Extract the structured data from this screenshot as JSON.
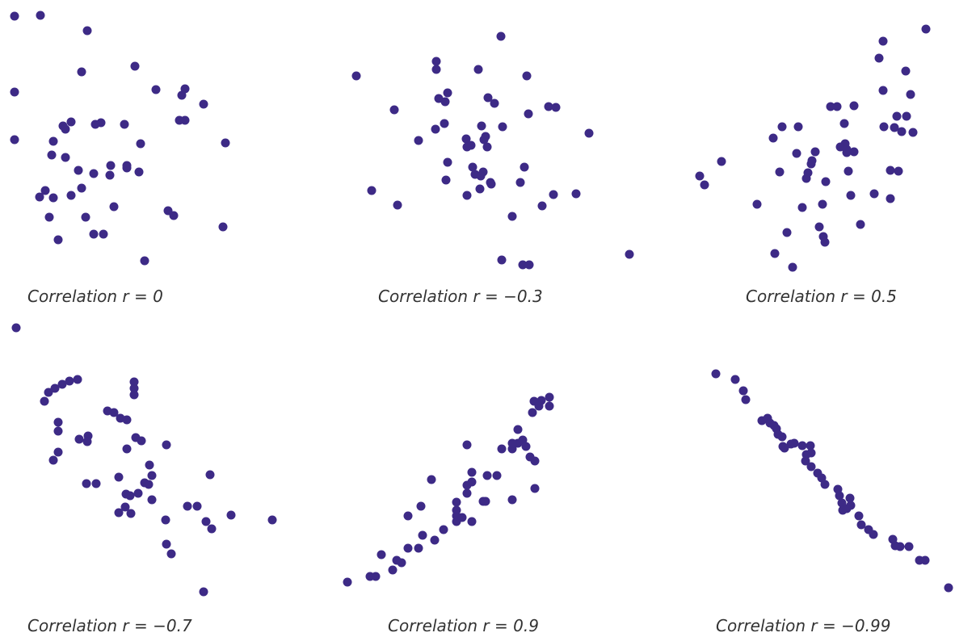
{
  "point_color": "#3d2a86",
  "chart_data": [
    {
      "type": "scatter",
      "caption": "Correlation r = 0",
      "r": 0,
      "x": [
        18,
        50,
        108,
        18,
        18,
        157,
        167,
        101,
        225,
        229,
        193,
        252,
        229,
        222,
        279,
        174,
        154,
        125,
        118,
        88,
        78,
        81,
        66,
        64,
        81,
        97,
        116,
        137,
        136,
        157,
        172,
        49,
        56,
        66,
        88,
        101,
        141,
        208,
        215,
        61,
        106,
        116,
        128,
        72,
        276,
        179
      ],
      "y": [
        20,
        19,
        38,
        114,
        173,
        208,
        82,
        89,
        118,
        110,
        111,
        129,
        149,
        149,
        177,
        178,
        154,
        152,
        154,
        151,
        156,
        160,
        175,
        192,
        195,
        211,
        215,
        205,
        217,
        205,
        213,
        244,
        236,
        245,
        242,
        233,
        256,
        261,
        267,
        269,
        269,
        290,
        290,
        297,
        281,
        323
      ]
    },
    {
      "type": "scatter",
      "caption": "Correlation r = −0.3",
      "r": -0.3,
      "x": [
        620,
        540,
        540,
        592,
        441,
        554,
        543,
        551,
        488,
        652,
        604,
        612,
        679,
        688,
        654,
        729,
        550,
        539,
        518,
        596,
        622,
        577,
        583,
        599,
        601,
        603,
        578,
        554,
        585,
        598,
        588,
        595,
        607,
        552,
        649,
        578,
        644,
        460,
        492,
        594,
        685,
        608,
        713,
        671,
        634,
        621,
        779,
        647,
        655
      ],
      "y": [
        45,
        76,
        86,
        86,
        94,
        115,
        122,
        126,
        136,
        94,
        121,
        128,
        132,
        133,
        141,
        165,
        153,
        160,
        174,
        156,
        157,
        172,
        180,
        173,
        169,
        182,
        182,
        201,
        207,
        213,
        216,
        218,
        226,
        223,
        207,
        242,
        226,
        236,
        254,
        234,
        241,
        228,
        240,
        255,
        268,
        322,
        315,
        328,
        328
      ]
    },
    {
      "type": "scatter",
      "caption": "Correlation r = 0.5",
      "r": 0.5,
      "x": [
        1146,
        1093,
        1088,
        1121,
        1093,
        1127,
        1036,
        1057,
        1028,
        1110,
        1122,
        1094,
        1107,
        1045,
        1116,
        1130,
        1046,
        1048,
        968,
        988,
        957,
        1040,
        1048,
        1057,
        1009,
        1005,
        986,
        1004,
        1000,
        1050,
        1102,
        1112,
        893,
        866,
        872,
        965,
        998,
        1022,
        937,
        1053,
        1082,
        1102,
        993,
        1018,
        1014,
        974,
        1065,
        1019,
        1021,
        959,
        981
      ],
      "y": [
        36,
        51,
        72,
        88,
        112,
        117,
        132,
        131,
        132,
        144,
        144,
        157,
        158,
        153,
        163,
        164,
        178,
        189,
        157,
        157,
        171,
        182,
        185,
        188,
        188,
        199,
        190,
        203,
        214,
        212,
        211,
        212,
        200,
        218,
        229,
        213,
        221,
        225,
        253,
        242,
        240,
        246,
        257,
        253,
        281,
        288,
        278,
        293,
        300,
        314,
        331
      ]
    },
    {
      "type": "scatter",
      "caption": "Correlation r = −0.7",
      "r": -0.7,
      "x": [
        20,
        96,
        86,
        77,
        68,
        60,
        55,
        166,
        166,
        166,
        72,
        72,
        98,
        109,
        108,
        133,
        141,
        149,
        157,
        168,
        175,
        206,
        157,
        185,
        72,
        66,
        188,
        260,
        107,
        119,
        147,
        156,
        161,
        171,
        179,
        184,
        188,
        155,
        147,
        162,
        205,
        232,
        244,
        255,
        262,
        286,
        337,
        206,
        212,
        252
      ],
      "y": [
        406,
        470,
        472,
        476,
        481,
        486,
        497,
        473,
        481,
        489,
        523,
        534,
        544,
        540,
        547,
        509,
        511,
        518,
        520,
        542,
        546,
        551,
        556,
        576,
        560,
        570,
        589,
        588,
        599,
        599,
        591,
        612,
        614,
        611,
        598,
        600,
        619,
        628,
        635,
        636,
        644,
        627,
        627,
        646,
        655,
        638,
        644,
        674,
        686,
        733
      ]
    },
    {
      "type": "scatter",
      "caption": "Correlation r = 0.9",
      "r": 0.9,
      "x": [
        430,
        458,
        465,
        486,
        497,
        472,
        491,
        505,
        518,
        523,
        538,
        549,
        565,
        565,
        565,
        572,
        584,
        598,
        601,
        578,
        578,
        584,
        584,
        603,
        615,
        634,
        662,
        634,
        641,
        647,
        651,
        656,
        662,
        621,
        641,
        659,
        680,
        680,
        670,
        661,
        667,
        634,
        578,
        534,
        565,
        521,
        505
      ],
      "y": [
        721,
        714,
        714,
        706,
        697,
        687,
        694,
        679,
        679,
        663,
        669,
        656,
        646,
        639,
        632,
        641,
        646,
        621,
        621,
        611,
        601,
        597,
        585,
        589,
        589,
        619,
        605,
        556,
        549,
        545,
        553,
        566,
        571,
        556,
        532,
        511,
        503,
        492,
        496,
        497,
        503,
        549,
        551,
        594,
        622,
        627,
        639
      ]
    },
    {
      "type": "scatter",
      "caption": "Correlation r = −0.99",
      "r": -0.99,
      "x": [
        886,
        910,
        920,
        923,
        943,
        950,
        953,
        958,
        961,
        963,
        968,
        979,
        971,
        969,
        983,
        993,
        1003,
        1004,
        998,
        997,
        1004,
        1012,
        1017,
        1021,
        1037,
        1039,
        1042,
        1052,
        1053,
        1043,
        1048,
        1063,
        1066,
        1075,
        1081,
        1105,
        1108,
        1114,
        1125,
        1138,
        1145,
        1174
      ],
      "y": [
        463,
        470,
        484,
        495,
        521,
        518,
        524,
        527,
        531,
        538,
        541,
        550,
        555,
        553,
        549,
        552,
        552,
        561,
        563,
        571,
        578,
        586,
        592,
        600,
        606,
        614,
        623,
        617,
        626,
        632,
        630,
        639,
        650,
        656,
        662,
        668,
        676,
        677,
        677,
        694,
        694,
        728
      ]
    }
  ]
}
